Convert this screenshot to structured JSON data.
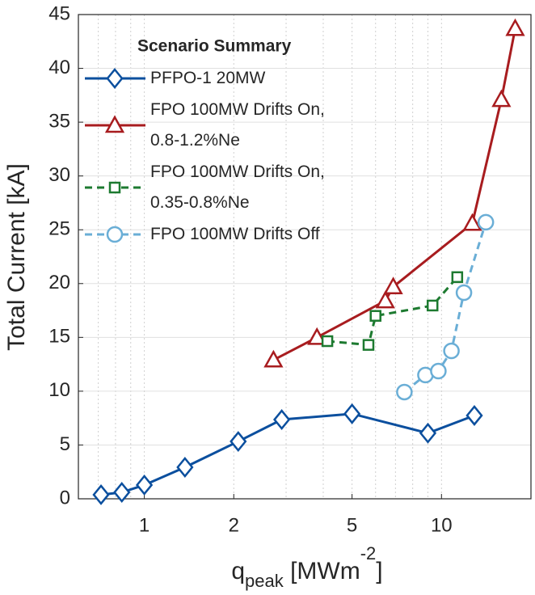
{
  "chart_data": {
    "type": "line",
    "xlabel": [
      {
        "text": "q"
      },
      {
        "text": "peak",
        "shift": "sub"
      },
      {
        "text": " [MWm"
      },
      {
        "text": "-2",
        "shift": "super"
      },
      {
        "text": "]"
      }
    ],
    "ylabel": "Total Current [kA]",
    "legend_title": "Scenario Summary",
    "legend": "upper left",
    "xscale": "log",
    "xlim": [
      0.6,
      20
    ],
    "xticks": [
      1,
      2,
      5,
      10
    ],
    "xminorticks": [
      0.7,
      0.8,
      0.9,
      3,
      4,
      6,
      7,
      8,
      9,
      20
    ],
    "ylim": [
      0,
      45
    ],
    "yticks": [
      0,
      5,
      10,
      15,
      20,
      25,
      30,
      35,
      40,
      45
    ],
    "grid": true,
    "series": [
      {
        "name": "PFPO-1 20MW",
        "color": "#0b4f9e",
        "marker": "diamond",
        "dash": "solid",
        "x": [
          0.715,
          0.84,
          1.0,
          1.37,
          2.07,
          2.9,
          5.0,
          9.0,
          12.9
        ],
        "values": [
          0.38,
          0.6,
          1.28,
          2.93,
          5.33,
          7.36,
          7.9,
          6.1,
          7.74
        ]
      },
      {
        "name": "FPO 100MW Drifts On,\n0.8-1.2%Ne",
        "color": "#a81c1f",
        "marker": "triangle",
        "dash": "solid",
        "x": [
          2.72,
          3.81,
          6.47,
          6.88,
          12.7,
          15.9,
          17.7
        ],
        "values": [
          12.9,
          15.0,
          18.4,
          19.7,
          25.6,
          37.1,
          43.7
        ]
      },
      {
        "name": "FPO 100MW Drifts On,\n0.35-0.8%Ne",
        "color": "#1d7a30",
        "marker": "square",
        "dash": "dashed",
        "x": [
          4.13,
          5.68,
          6.0,
          9.33,
          11.3
        ],
        "values": [
          14.65,
          14.3,
          17.0,
          17.96,
          20.6
        ]
      },
      {
        "name": "FPO 100MW Drifts Off",
        "color": "#6aaed6",
        "marker": "circle",
        "dash": "dashed",
        "x": [
          7.5,
          8.83,
          9.76,
          10.8,
          11.9,
          14.1
        ],
        "values": [
          9.92,
          11.5,
          11.87,
          13.75,
          19.16,
          25.7
        ]
      }
    ]
  }
}
